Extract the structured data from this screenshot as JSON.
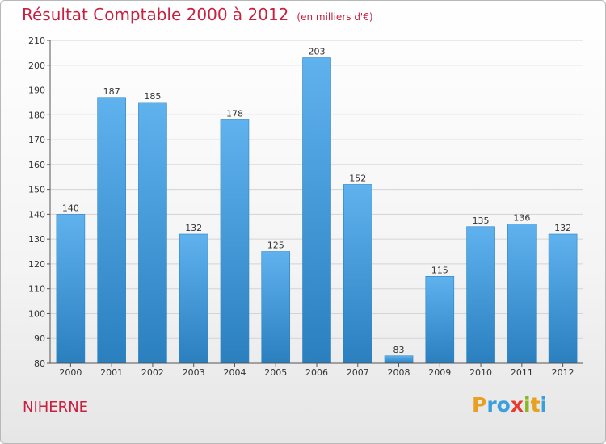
{
  "title": "Résultat Comptable 2000 à 2012",
  "subtitle": "(en milliers d'€)",
  "commune": "NIHERNE",
  "brand": {
    "letters": [
      "P",
      "r",
      "o",
      "x",
      "i",
      "t",
      "i"
    ],
    "colors": [
      "#e8a020",
      "#3aa0dc",
      "#3aa0dc",
      "#e83a30",
      "#88b820",
      "#e8a020",
      "#3aa0dc"
    ]
  },
  "colors": {
    "bar": "#3d96d8",
    "title": "#c8213f",
    "axis": "#555555",
    "grid": "#d4d4d4"
  },
  "chart_data": {
    "type": "bar",
    "title": "Résultat Comptable 2000 à 2012",
    "xlabel": "",
    "ylabel": "",
    "ylim": [
      80,
      210
    ],
    "yticks": [
      80,
      90,
      100,
      110,
      120,
      130,
      140,
      150,
      160,
      170,
      180,
      190,
      200,
      210
    ],
    "categories": [
      "2000",
      "2001",
      "2002",
      "2003",
      "2004",
      "2005",
      "2006",
      "2007",
      "2008",
      "2009",
      "2010",
      "2011",
      "2012"
    ],
    "values": [
      140,
      187,
      185,
      132,
      178,
      125,
      203,
      152,
      83,
      115,
      135,
      136,
      132
    ]
  }
}
